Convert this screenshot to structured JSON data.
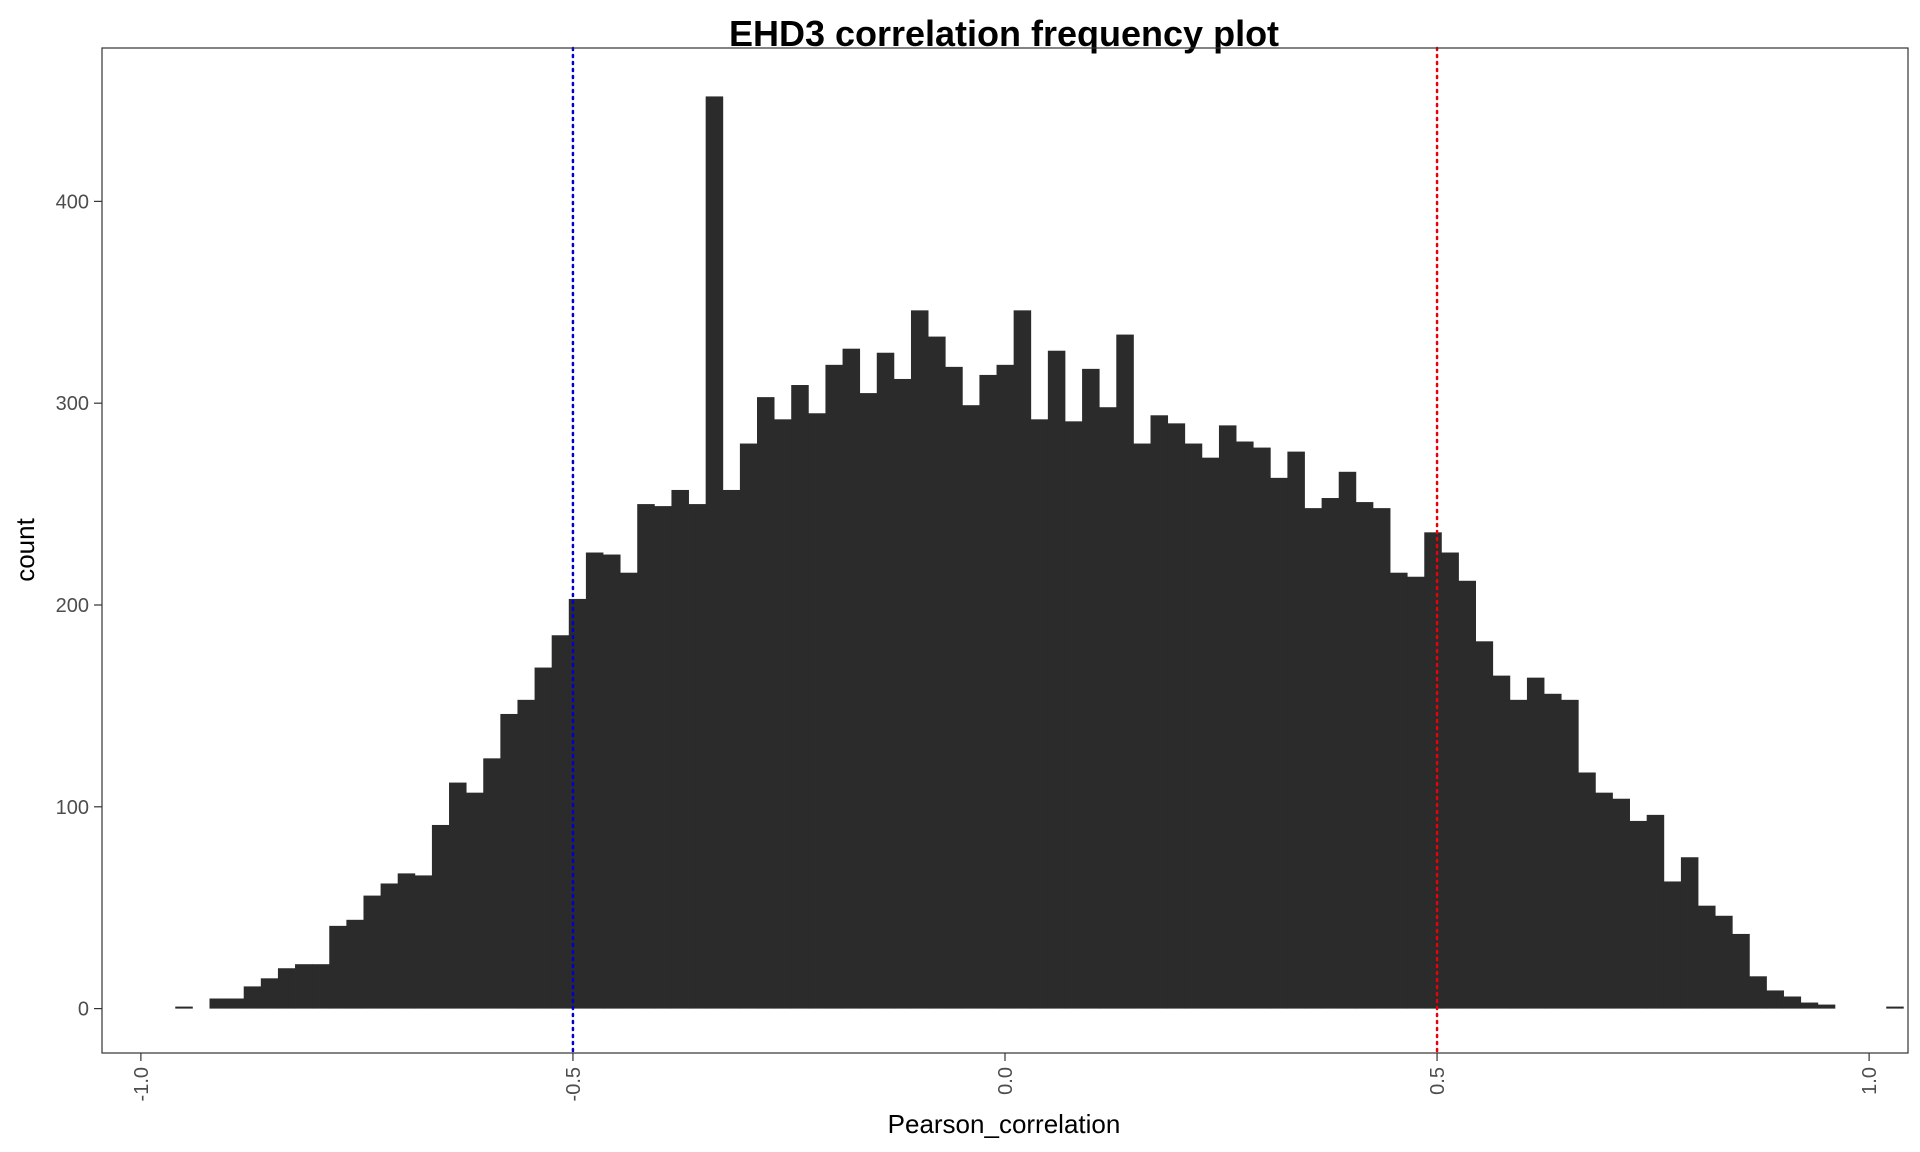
{
  "chart_data": {
    "type": "bar",
    "title": "EHD3 correlation frequency plot",
    "xlabel": "Pearson_correlation",
    "ylabel": "count",
    "xlim": [
      -1.045,
      1.045
    ],
    "ylim": [
      -22,
      476
    ],
    "x_ticks": [
      "-1.0",
      "-0.5",
      "0.0",
      "0.5",
      "1.0"
    ],
    "y_ticks": [
      "0",
      "100",
      "200",
      "300",
      "400"
    ],
    "grid": false,
    "bar_color": "#2b2b2b",
    "bin_start": -0.98,
    "bin_width": 0.0198,
    "values": [
      0,
      1,
      0,
      5,
      5,
      11,
      15,
      20,
      22,
      22,
      41,
      44,
      56,
      62,
      67,
      66,
      91,
      112,
      107,
      124,
      146,
      153,
      169,
      185,
      203,
      226,
      225,
      216,
      250,
      249,
      257,
      250,
      452,
      257,
      280,
      303,
      292,
      309,
      295,
      319,
      327,
      305,
      325,
      312,
      346,
      333,
      318,
      299,
      314,
      319,
      346,
      292,
      326,
      291,
      317,
      298,
      334,
      280,
      294,
      290,
      280,
      273,
      289,
      281,
      278,
      263,
      276,
      248,
      253,
      266,
      251,
      248,
      216,
      214,
      236,
      226,
      212,
      182,
      165,
      153,
      164,
      156,
      153,
      117,
      107,
      104,
      93,
      96,
      63,
      75,
      51,
      46,
      37,
      16,
      9,
      6,
      3,
      2,
      0,
      0,
      0,
      1
    ],
    "reference_lines": [
      {
        "x": -0.5,
        "color": "#0000cd",
        "style": "dotted"
      },
      {
        "x": 0.5,
        "color": "#e8000b",
        "style": "dotted"
      }
    ]
  }
}
